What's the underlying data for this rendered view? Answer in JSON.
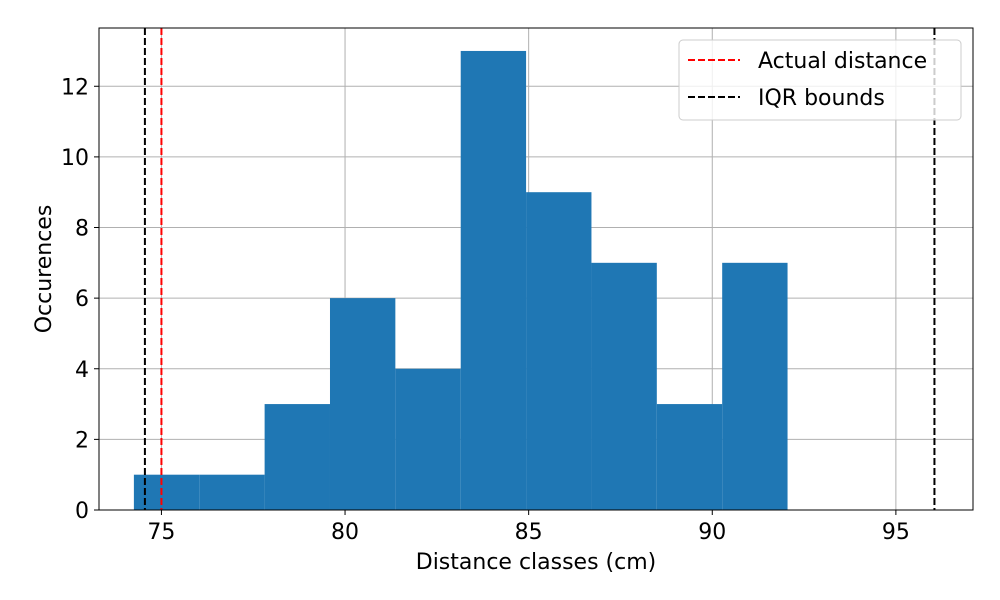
{
  "chart_data": {
    "type": "bar",
    "subtype": "histogram",
    "xlabel": "Distance classes (cm)",
    "ylabel": "Occurences",
    "xlim": [
      73.3,
      97.1
    ],
    "ylim": [
      0,
      13.65
    ],
    "xticks": [
      75,
      80,
      85,
      90,
      95
    ],
    "yticks": [
      0,
      2,
      4,
      6,
      8,
      10,
      12
    ],
    "grid": true,
    "bar_color": "#1f77b4",
    "bins": [
      {
        "x0": 74.25,
        "x1": 76.03,
        "count": 1
      },
      {
        "x0": 76.03,
        "x1": 77.81,
        "count": 1
      },
      {
        "x0": 77.81,
        "x1": 79.59,
        "count": 3
      },
      {
        "x0": 79.59,
        "x1": 81.37,
        "count": 6
      },
      {
        "x0": 81.37,
        "x1": 83.15,
        "count": 4
      },
      {
        "x0": 83.15,
        "x1": 84.93,
        "count": 13
      },
      {
        "x0": 84.93,
        "x1": 86.71,
        "count": 9
      },
      {
        "x0": 86.71,
        "x1": 88.49,
        "count": 7
      },
      {
        "x0": 88.49,
        "x1": 90.27,
        "count": 3
      },
      {
        "x0": 90.27,
        "x1": 92.05,
        "count": 7
      }
    ],
    "vlines": [
      {
        "name": "Actual distance",
        "x": 75.0,
        "color": "#ff0000",
        "style": "dashed"
      },
      {
        "name": "IQR bounds",
        "x": 74.55,
        "color": "#000000",
        "style": "dashed"
      },
      {
        "name": "IQR bounds",
        "x": 96.05,
        "color": "#000000",
        "style": "dashed"
      }
    ],
    "legend": {
      "position": "top-right",
      "entries": [
        {
          "label": "Actual distance",
          "color": "#ff0000"
        },
        {
          "label": "IQR bounds",
          "color": "#000000"
        }
      ]
    }
  }
}
